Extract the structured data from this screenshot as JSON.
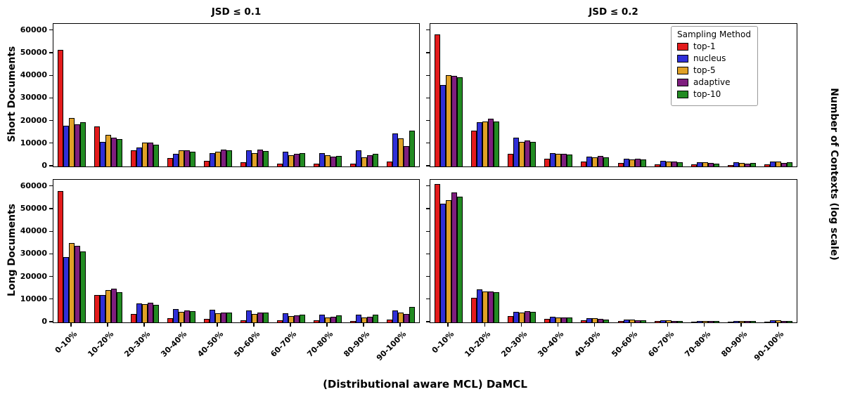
{
  "figure": {
    "col_titles": [
      "JSD ≤ 0.1",
      "JSD ≤ 0.2"
    ],
    "row_labels": [
      "Short Documents",
      "Long Documents"
    ],
    "right_ylabel": "Number of Contexts (log scale)",
    "xlabel": "(Distributional aware MCL) DaMCL"
  },
  "legend": {
    "title": "Sampling Method",
    "entries": [
      {
        "label": "top-1",
        "color": "#e31b1c"
      },
      {
        "label": "nucleus",
        "color": "#2f2fd8"
      },
      {
        "label": "top-5",
        "color": "#e0a126"
      },
      {
        "label": "adaptive",
        "color": "#7e1e7e"
      },
      {
        "label": "top-10",
        "color": "#228b22"
      }
    ]
  },
  "axes": {
    "yticks": [
      {
        "value": 0,
        "label": "0"
      },
      {
        "value": 10000,
        "label": "10000"
      },
      {
        "value": 20000,
        "label": "20000"
      },
      {
        "value": 30000,
        "label": "30000"
      },
      {
        "value": 40000,
        "label": "40000"
      },
      {
        "value": 50000,
        "label": "50000"
      },
      {
        "value": 60000,
        "label": "60000"
      }
    ]
  },
  "chart_data": [
    {
      "type": "bar",
      "title": "Short Documents, JSD ≤ 0.1",
      "ylim": [
        0,
        63000
      ],
      "categories": [
        "0-10%",
        "10-20%",
        "20-30%",
        "30-40%",
        "40-50%",
        "50-60%",
        "60-70%",
        "70-80%",
        "80-90%",
        "90-100%"
      ],
      "series": [
        {
          "name": "top-1",
          "values": [
            51500,
            17800,
            7000,
            3600,
            2500,
            2000,
            1300,
            1300,
            1300,
            2300
          ]
        },
        {
          "name": "nucleus",
          "values": [
            18000,
            10800,
            8500,
            5500,
            6000,
            7000,
            6500,
            6000,
            7000,
            14500
          ]
        },
        {
          "name": "top-5",
          "values": [
            21500,
            14000,
            10500,
            7000,
            6500,
            6000,
            5000,
            5000,
            4000,
            12500
          ]
        },
        {
          "name": "adaptive",
          "values": [
            18500,
            12800,
            10500,
            7200,
            7500,
            7500,
            5500,
            4200,
            5000,
            9000
          ]
        },
        {
          "name": "top-10",
          "values": [
            19500,
            12000,
            9500,
            6500,
            7000,
            6800,
            5800,
            4800,
            5500,
            15800
          ]
        }
      ]
    },
    {
      "type": "bar",
      "title": "Short Documents, JSD ≤ 0.2",
      "ylim": [
        0,
        63000
      ],
      "categories": [
        "0-10%",
        "10-20%",
        "20-30%",
        "30-40%",
        "40-50%",
        "50-60%",
        "60-70%",
        "70-80%",
        "80-90%",
        "90-100%"
      ],
      "series": [
        {
          "name": "top-1",
          "values": [
            58500,
            15800,
            5500,
            3500,
            2200,
            1500,
            1000,
            800,
            700,
            900
          ]
        },
        {
          "name": "nucleus",
          "values": [
            36000,
            19500,
            12800,
            6000,
            4500,
            3500,
            2500,
            1800,
            1800,
            2200
          ]
        },
        {
          "name": "top-5",
          "values": [
            40500,
            20000,
            11000,
            5500,
            4000,
            3000,
            2200,
            1800,
            1500,
            2200
          ]
        },
        {
          "name": "adaptive",
          "values": [
            40000,
            21000,
            11500,
            5500,
            4800,
            3500,
            2200,
            1500,
            1300,
            1500
          ]
        },
        {
          "name": "top-10",
          "values": [
            39500,
            20000,
            11000,
            5300,
            4000,
            3000,
            2000,
            1300,
            1500,
            1800
          ]
        }
      ]
    },
    {
      "type": "bar",
      "title": "Long Documents, JSD ≤ 0.1",
      "ylim": [
        0,
        63000
      ],
      "categories": [
        "0-10%",
        "10-20%",
        "20-30%",
        "30-40%",
        "40-50%",
        "50-60%",
        "60-70%",
        "70-80%",
        "80-90%",
        "90-100%"
      ],
      "series": [
        {
          "name": "top-1",
          "values": [
            58000,
            12000,
            3800,
            2000,
            1500,
            1000,
            900,
            800,
            700,
            1200
          ]
        },
        {
          "name": "nucleus",
          "values": [
            29000,
            12200,
            8500,
            5800,
            5500,
            5200,
            4000,
            3300,
            3300,
            5200
          ]
        },
        {
          "name": "top-5",
          "values": [
            35000,
            14200,
            8000,
            4800,
            4000,
            3800,
            2800,
            2300,
            2200,
            4500
          ]
        },
        {
          "name": "adaptive",
          "values": [
            33800,
            14800,
            8700,
            5200,
            4300,
            4200,
            3000,
            2500,
            2500,
            3800
          ]
        },
        {
          "name": "top-10",
          "values": [
            31500,
            13500,
            7800,
            5000,
            4500,
            4200,
            3300,
            3000,
            3300,
            6800
          ]
        }
      ]
    },
    {
      "type": "bar",
      "title": "Long Documents, JSD ≤ 0.2",
      "ylim": [
        0,
        63000
      ],
      "categories": [
        "0-10%",
        "10-20%",
        "20-30%",
        "30-40%",
        "40-50%",
        "50-60%",
        "60-70%",
        "70-80%",
        "80-90%",
        "90-100%"
      ],
      "series": [
        {
          "name": "top-1",
          "values": [
            61000,
            11000,
            2800,
            1500,
            1000,
            700,
            500,
            400,
            400,
            400
          ]
        },
        {
          "name": "nucleus",
          "values": [
            52500,
            14500,
            4800,
            2500,
            1800,
            1300,
            800,
            700,
            700,
            800
          ]
        },
        {
          "name": "top-5",
          "values": [
            54000,
            13800,
            4500,
            2200,
            1800,
            1200,
            900,
            700,
            600,
            900
          ]
        },
        {
          "name": "adaptive",
          "values": [
            57500,
            13800,
            5000,
            2300,
            1500,
            1000,
            700,
            500,
            500,
            500
          ]
        },
        {
          "name": "top-10",
          "values": [
            55500,
            13500,
            4800,
            2200,
            1400,
            1000,
            700,
            500,
            500,
            500
          ]
        }
      ]
    }
  ]
}
